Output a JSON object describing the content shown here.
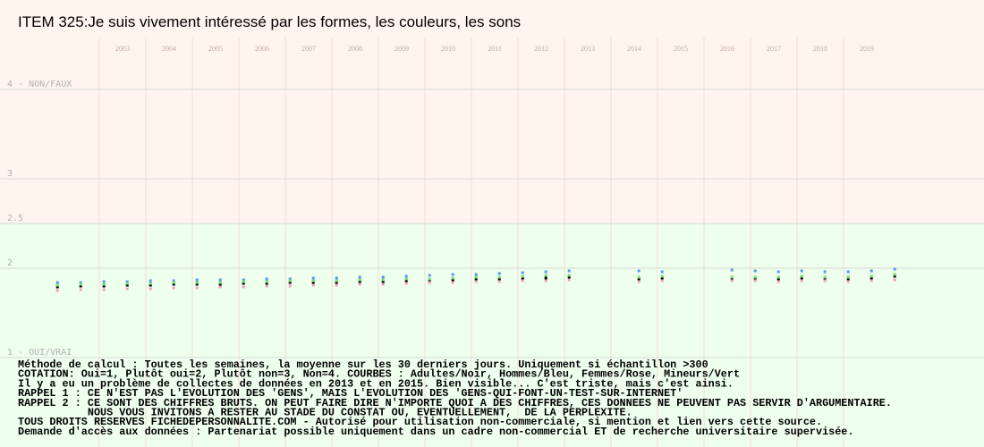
{
  "chart_data": {
    "type": "scatter",
    "title": "ITEM 325:Je suis vivement intéressé par les formes, les couleurs, les sons",
    "x": [
      2002.1,
      2002.6,
      2003.1,
      2003.6,
      2004.1,
      2004.6,
      2005.1,
      2005.6,
      2006.1,
      2006.6,
      2007.1,
      2007.6,
      2008.1,
      2008.6,
      2009.1,
      2009.6,
      2010.1,
      2010.6,
      2011.1,
      2011.6,
      2012.1,
      2012.6,
      2013.1,
      2013.6,
      2014.1,
      2014.6,
      2015.1,
      2015.6,
      2016.1,
      2016.6,
      2017.1,
      2017.6,
      2018.1,
      2018.6,
      2019.1,
      2019.6,
      2020.1
    ],
    "series": [
      {
        "color": "#000000",
        "values": [
          1.79,
          1.8,
          1.8,
          1.81,
          1.81,
          1.82,
          1.82,
          1.82,
          1.83,
          1.83,
          1.84,
          1.84,
          1.84,
          1.85,
          1.85,
          1.86,
          1.86,
          1.87,
          1.87,
          1.88,
          1.88,
          1.89,
          1.9,
          null,
          null,
          1.88,
          1.89,
          null,
          null,
          1.88,
          1.88,
          1.88,
          1.89,
          1.88,
          1.88,
          1.89,
          1.91
        ]
      },
      {
        "color": "#5599ee",
        "values": [
          1.84,
          1.84,
          1.85,
          1.85,
          1.86,
          1.86,
          1.87,
          1.87,
          1.87,
          1.88,
          1.88,
          1.89,
          1.89,
          1.9,
          1.9,
          1.91,
          1.92,
          1.93,
          1.93,
          1.94,
          1.95,
          1.96,
          1.97,
          null,
          null,
          1.97,
          1.96,
          null,
          null,
          1.98,
          1.97,
          1.96,
          1.97,
          1.96,
          1.96,
          1.97,
          1.99
        ]
      },
      {
        "color": "#f0a0c0",
        "values": [
          1.75,
          1.76,
          1.76,
          1.77,
          1.77,
          1.78,
          1.78,
          1.79,
          1.79,
          1.8,
          1.8,
          1.81,
          1.81,
          1.82,
          1.82,
          1.83,
          1.84,
          1.84,
          1.85,
          1.85,
          1.86,
          1.86,
          1.87,
          null,
          null,
          1.85,
          1.86,
          null,
          null,
          1.86,
          1.86,
          1.85,
          1.86,
          1.86,
          1.85,
          1.86,
          1.87
        ]
      },
      {
        "color": "#77dd77",
        "values": [
          1.81,
          1.82,
          1.82,
          1.83,
          1.83,
          1.84,
          1.84,
          1.84,
          1.85,
          1.85,
          1.86,
          1.86,
          1.86,
          1.87,
          1.87,
          1.88,
          1.88,
          1.89,
          1.9,
          1.9,
          1.91,
          1.92,
          1.92,
          null,
          null,
          1.9,
          1.91,
          null,
          null,
          1.9,
          1.9,
          1.9,
          1.91,
          1.9,
          1.9,
          1.91,
          1.93
        ]
      }
    ],
    "xlim": [
      2000.865,
      2022.019
    ],
    "xticks": [
      2003,
      2004,
      2005,
      2006,
      2007,
      2008,
      2009,
      2010,
      2011,
      2012,
      2013,
      2014,
      2015,
      2016,
      2017,
      2018,
      2019
    ],
    "ylim": [
      0,
      5
    ],
    "yticks": [
      {
        "value": 1,
        "label": "1 - OUI/VRAI"
      },
      2,
      2.5,
      3,
      {
        "value": 4,
        "label": "4 - NON/FAUX"
      }
    ],
    "band_split": 2.5,
    "band_colors": [
      "#fff4ee",
      "#eeffee"
    ],
    "grid": true,
    "notes": [
      "Méthode de calcul : Toutes les semaines, la moyenne sur les 30 derniers jours. Uniquement si échantillon >300",
      "COTATION: Oui=1, Plutôt oui=2, Plutôt non=3, Non=4. COURBES : Adultes/Noir, Hommes/Bleu, Femmes/Rose, Mineurs/Vert",
      "Il y a eu un problème de collectes de données en 2013 et en 2015. Bien visible... C'est triste, mais c'est ainsi.",
      "RAPPEL 1 : CE N'EST PAS L'EVOLUTION DES 'GENS', MAIS L'EVOLUTION DES 'GENS-QUI-FONT-UN-TEST-SUR-INTERNET'",
      "RAPPEL 2 : CE SONT DES CHIFFRES BRUTS. ON PEUT FAIRE DIRE N'IMPORTE QUOI A DES CHIFFRES, CES DONNEES NE PEUVENT PAS SERVIR D'ARGUMENTAIRE.",
      "           NOUS VOUS INVITONS A RESTER AU STADE DU CONSTAT OU, EVENTUELLEMENT,  DE LA PERPLEXITE.",
      "TOUS DROITS RESERVES FICHEDEPERSONNALITE.COM - Autorisé pour utilisation non-commerciale, si mention et lien vers cette source.",
      "Demande d'accès aux données : Partenariat possible uniquement dans un cadre non-commercial ET de recherche universitaire supervisée."
    ]
  }
}
